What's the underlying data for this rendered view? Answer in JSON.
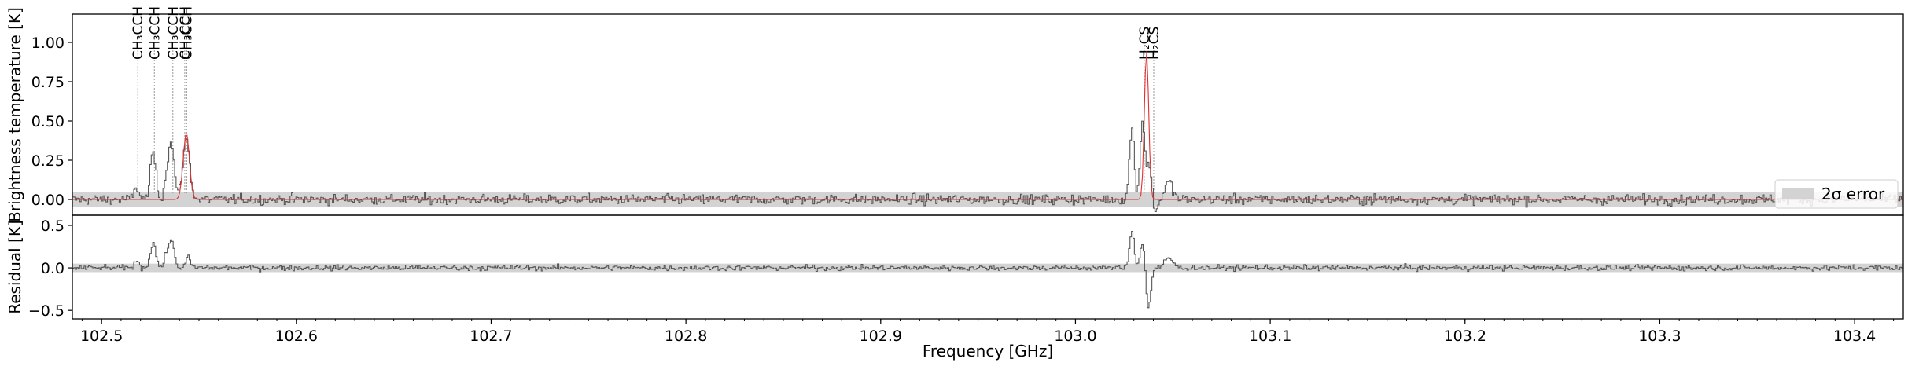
{
  "chart_data": [
    {
      "type": "line",
      "panel": "spectrum",
      "xlabel": "",
      "ylabel": "Brightness temperature [K]",
      "xlim": [
        102.485,
        103.425
      ],
      "ylim": [
        -0.1,
        1.18
      ],
      "yticks": [
        0.0,
        0.25,
        0.5,
        0.75,
        1.0
      ],
      "ytick_labels": [
        "0.00",
        "0.25",
        "0.50",
        "0.75",
        "1.00"
      ],
      "grid": false,
      "legend": {
        "placement": "right",
        "entries": [
          "2σ error"
        ]
      },
      "error_band": {
        "low": -0.05,
        "high": 0.05,
        "color": "#d3d3d3"
      },
      "colors": {
        "observed": "#555555",
        "model": "#e03030",
        "band": "#d3d3d3",
        "marker": "#999999"
      },
      "series": [
        {
          "kind": "observed-step",
          "noise_sigma": 0.022,
          "features": [
            {
              "x": 102.518,
              "y": 0.08,
              "width": 0.0012
            },
            {
              "x": 102.5265,
              "y": 0.3,
              "width": 0.0014
            },
            {
              "x": 102.5335,
              "y": 0.15,
              "width": 0.0012
            },
            {
              "x": 102.536,
              "y": 0.34,
              "width": 0.0014
            },
            {
              "x": 102.5435,
              "y": 0.38,
              "width": 0.0018
            },
            {
              "x": 103.029,
              "y": 0.46,
              "width": 0.0012
            },
            {
              "x": 103.0345,
              "y": 0.5,
              "width": 0.0012
            },
            {
              "x": 103.038,
              "y": 0.22,
              "width": 0.0012
            },
            {
              "x": 103.048,
              "y": 0.11,
              "width": 0.002
            },
            {
              "x": 103.041,
              "y": -0.08,
              "width": 0.0012
            }
          ]
        },
        {
          "kind": "model",
          "features": [
            {
              "x": 102.5435,
              "y": 0.42,
              "width": 0.0016
            },
            {
              "x": 103.0365,
              "y": 0.95,
              "width": 0.0011
            }
          ]
        }
      ],
      "line_markers": [
        {
          "x": 102.5186,
          "label": "CH₃CCH"
        },
        {
          "x": 102.5271,
          "label": "CH₃CCH"
        },
        {
          "x": 102.5366,
          "label": "CH₃CCH"
        },
        {
          "x": 102.5427,
          "label": "CH₃CCH"
        },
        {
          "x": 102.5437,
          "label": "CH₃CCH"
        },
        {
          "x": 103.0353,
          "label": "H₂CS"
        },
        {
          "x": 103.0402,
          "label": "H₂CS"
        }
      ]
    },
    {
      "type": "line",
      "panel": "residual",
      "xlabel": "Frequency [GHz]",
      "ylabel": "Residual [K]",
      "xlim": [
        102.485,
        103.425
      ],
      "ylim": [
        -0.6,
        0.62
      ],
      "yticks": [
        -0.5,
        0.0,
        0.5
      ],
      "ytick_labels": [
        "−0.5",
        "0.0",
        "0.5"
      ],
      "xticks": [
        102.5,
        102.6,
        102.7,
        102.8,
        102.9,
        103.0,
        103.1,
        103.2,
        103.3,
        103.4
      ],
      "xtick_labels": [
        "102.5",
        "102.6",
        "102.7",
        "102.8",
        "102.9",
        "103.0",
        "103.1",
        "103.2",
        "103.3",
        "103.4"
      ],
      "grid": false,
      "error_band": {
        "low": -0.05,
        "high": 0.05,
        "color": "#d3d3d3"
      },
      "series": [
        {
          "kind": "residual-step",
          "noise_sigma": 0.022,
          "features": [
            {
              "x": 102.518,
              "y": 0.08,
              "width": 0.0012
            },
            {
              "x": 102.5265,
              "y": 0.3,
              "width": 0.0014
            },
            {
              "x": 102.5335,
              "y": 0.15,
              "width": 0.0012
            },
            {
              "x": 102.536,
              "y": 0.3,
              "width": 0.0014
            },
            {
              "x": 102.5445,
              "y": 0.12,
              "width": 0.0012
            },
            {
              "x": 103.029,
              "y": 0.44,
              "width": 0.0012
            },
            {
              "x": 103.0345,
              "y": 0.3,
              "width": 0.0012
            },
            {
              "x": 103.0375,
              "y": -0.48,
              "width": 0.0012
            },
            {
              "x": 103.048,
              "y": 0.12,
              "width": 0.002
            }
          ]
        }
      ]
    }
  ]
}
